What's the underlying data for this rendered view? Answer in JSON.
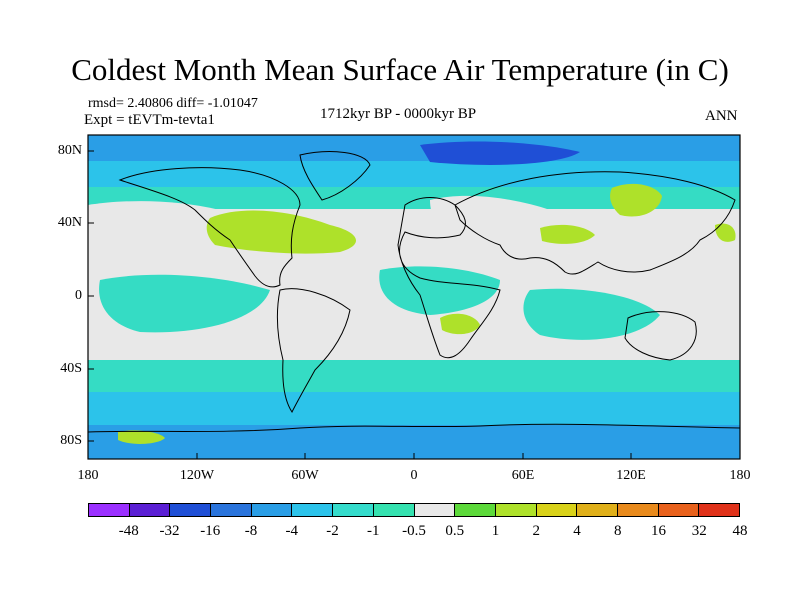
{
  "title": "Coldest Month Mean Surface Air Temperature (in C)",
  "stats": "rmsd= 2.40806 diff= -1.01047",
  "experiment": "Expt = tEVTm-tevta1",
  "period": "1712kyr BP - 0000kyr BP",
  "season": "ANN",
  "x_ticks": [
    "180",
    "120W",
    "60W",
    "0",
    "60E",
    "120E",
    "180"
  ],
  "y_ticks": [
    "80N",
    "40N",
    "0",
    "40S",
    "80S"
  ],
  "colorbar": {
    "labels": [
      "-48",
      "-32",
      "-16",
      "-8",
      "-4",
      "-2",
      "-1",
      "-0.5",
      "0.5",
      "1",
      "2",
      "4",
      "8",
      "16",
      "32",
      "48"
    ],
    "colors": [
      "#9b30ff",
      "#5b1fd4",
      "#1f4fd6",
      "#2a74dc",
      "#2a9ee6",
      "#2cc3ea",
      "#35dccc",
      "#35e2b0",
      "#e8e8e8",
      "#5cd93a",
      "#aee12a",
      "#d9d21a",
      "#e0b01a",
      "#e88a1c",
      "#e8611c",
      "#e0321a"
    ]
  },
  "colors": {
    "neutral": "#e8e8e8",
    "cool_light": "#35dcc4",
    "cool_mid": "#2cc3ea",
    "cool_deep": "#2a9ee6",
    "cold": "#2a74dc",
    "coldest": "#1f4fd6",
    "warm": "#aee12a",
    "warm_mid": "#d9d21a",
    "coast": "#000000"
  }
}
